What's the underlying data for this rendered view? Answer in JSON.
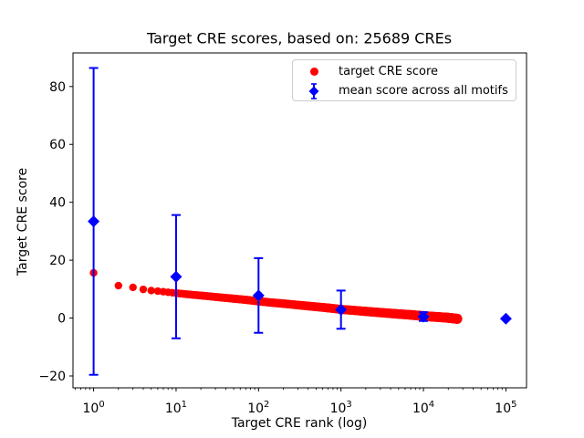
{
  "chart_data": {
    "type": "scatter",
    "title": "Target CRE scores, based on: 25689 CREs",
    "xlabel": "Target CRE rank (log)",
    "ylabel": "Target CRE score",
    "x_scale": "log",
    "grid": false,
    "xlim_log10": [
      -0.25,
      5.25
    ],
    "ylim": [
      -24.1,
      91.6
    ],
    "x_ticks": [
      {
        "value": 1,
        "base": "10",
        "exp": "0"
      },
      {
        "value": 10,
        "base": "10",
        "exp": "1"
      },
      {
        "value": 100,
        "base": "10",
        "exp": "2"
      },
      {
        "value": 1000,
        "base": "10",
        "exp": "3"
      },
      {
        "value": 10000,
        "base": "10",
        "exp": "4"
      },
      {
        "value": 100000,
        "base": "10",
        "exp": "5"
      }
    ],
    "y_ticks": [
      {
        "value": -20,
        "label": "−20"
      },
      {
        "value": 0,
        "label": "0"
      },
      {
        "value": 20,
        "label": "20"
      },
      {
        "value": 40,
        "label": "40"
      },
      {
        "value": 60,
        "label": "60"
      },
      {
        "value": 80,
        "label": "80"
      }
    ],
    "series": [
      {
        "name": "target CRE score",
        "type": "scatter",
        "marker": "circle",
        "color": "#ff0000",
        "points_rank_score": [
          [
            1,
            15.6
          ],
          [
            2,
            11.2
          ],
          [
            3,
            10.6
          ],
          [
            4,
            9.9
          ],
          [
            5,
            9.5
          ],
          [
            6,
            9.3
          ],
          [
            7,
            9.1
          ],
          [
            8,
            8.9
          ],
          [
            9,
            8.75
          ],
          [
            10,
            8.6
          ],
          [
            15,
            8.1
          ],
          [
            20,
            7.8
          ],
          [
            30,
            7.3
          ],
          [
            50,
            6.7
          ],
          [
            70,
            6.3
          ],
          [
            100,
            5.8
          ],
          [
            150,
            5.3
          ],
          [
            200,
            5.0
          ],
          [
            300,
            4.5
          ],
          [
            500,
            3.9
          ],
          [
            700,
            3.5
          ],
          [
            1000,
            3.0
          ],
          [
            1500,
            2.6
          ],
          [
            2000,
            2.3
          ],
          [
            3000,
            1.9
          ],
          [
            5000,
            1.4
          ],
          [
            7000,
            1.1
          ],
          [
            10000,
            0.7
          ],
          [
            15000,
            0.35
          ],
          [
            20000,
            0.1
          ],
          [
            25689,
            -0.25
          ]
        ]
      },
      {
        "name": "mean score across all motifs",
        "type": "errorbar",
        "marker": "diamond",
        "color": "#0000ff",
        "points_rank_mean_std": [
          [
            1,
            33.4,
            53.0
          ],
          [
            10,
            14.3,
            21.3
          ],
          [
            100,
            7.8,
            12.9
          ],
          [
            1000,
            2.9,
            6.6
          ],
          [
            10000,
            0.5,
            1.5
          ],
          [
            100000,
            -0.2,
            0.0
          ]
        ]
      }
    ],
    "legend": {
      "position": "upper right",
      "items": [
        {
          "label": "target CRE score",
          "marker": "circle",
          "color": "#ff0000"
        },
        {
          "label": "mean score across all motifs",
          "marker": "diamond-errorbar",
          "color": "#0000ff"
        }
      ]
    },
    "colors": {
      "red_series": "#ff0000",
      "blue_series": "#0000ff",
      "axis": "#000000",
      "legend_border": "#cccccc",
      "background": "#ffffff"
    }
  }
}
